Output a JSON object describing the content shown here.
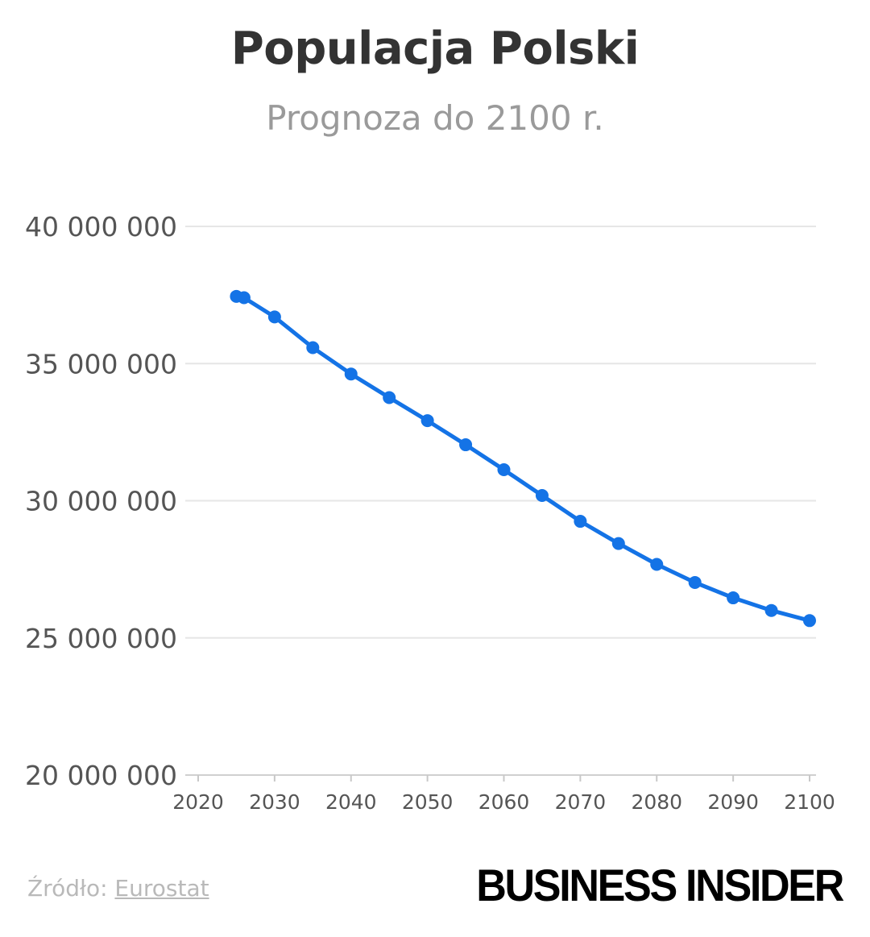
{
  "header": {
    "title": "Populacja Polski",
    "subtitle": "Prognoza do 2100 r."
  },
  "footer": {
    "source_prefix": "Źródło:",
    "source_link": "Eurostat",
    "brand": "BUSINESS INSIDER"
  },
  "colors": {
    "series": "#1473e6",
    "grid": "#e6e6e6",
    "axis_text": "#555555"
  },
  "chart_data": {
    "type": "line",
    "title": "Populacja Polski",
    "subtitle": "Prognoza do 2100 r.",
    "xlabel": "",
    "ylabel": "",
    "xlim": [
      2020,
      2100
    ],
    "ylim": [
      20000000,
      40000000
    ],
    "x_ticks": [
      2020,
      2030,
      2040,
      2050,
      2060,
      2070,
      2080,
      2090,
      2100
    ],
    "y_ticks": [
      20000000,
      25000000,
      30000000,
      35000000,
      40000000
    ],
    "y_tick_labels": [
      "20 000 000",
      "25 000 000",
      "30 000 000",
      "35 000 000",
      "40 000 000"
    ],
    "grid": true,
    "legend": "none",
    "series": [
      {
        "x": [
          2025,
          2026,
          2030,
          2035,
          2040,
          2045,
          2050,
          2055,
          2060,
          2065,
          2070,
          2075,
          2080,
          2085,
          2090,
          2095,
          2100
        ],
        "values": [
          37450000,
          37400000,
          36700000,
          35580000,
          34620000,
          33760000,
          32920000,
          32040000,
          31130000,
          30190000,
          29250000,
          28440000,
          27680000,
          27020000,
          26460000,
          26000000,
          25630000
        ]
      }
    ]
  }
}
